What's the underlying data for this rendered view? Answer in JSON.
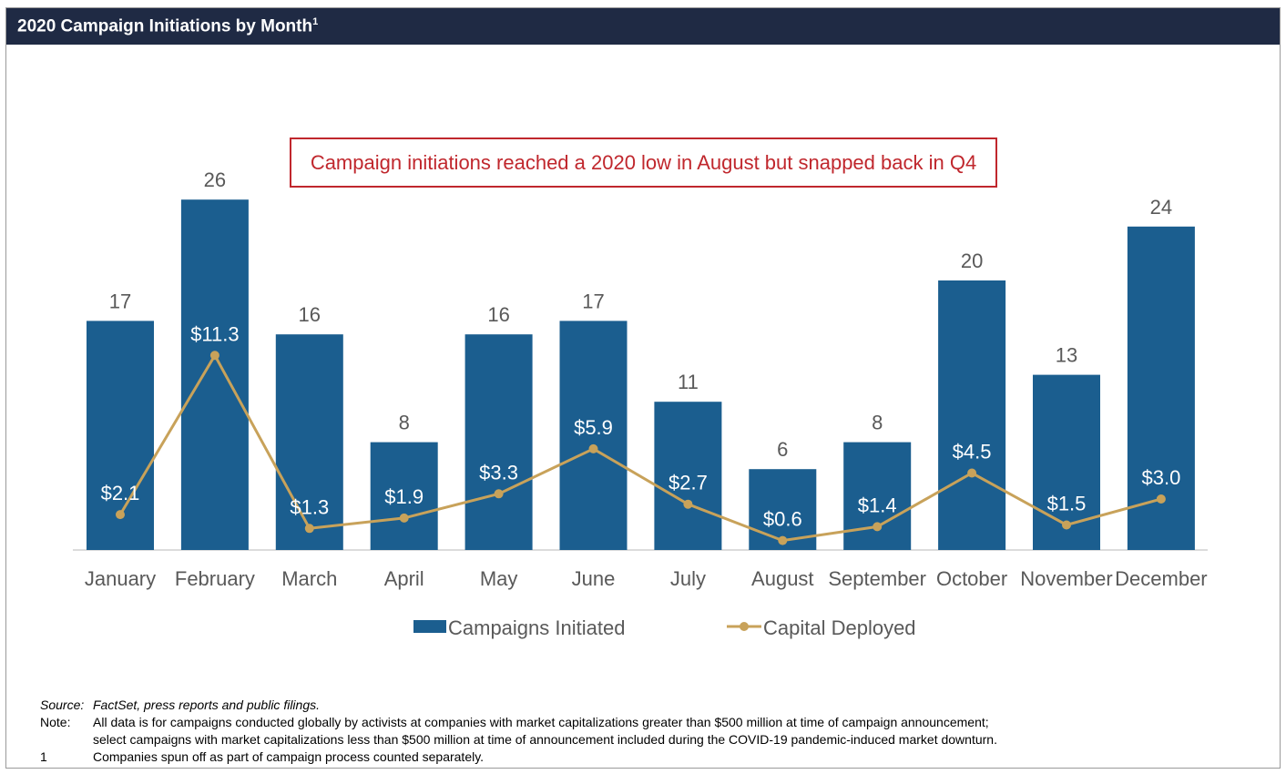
{
  "header": {
    "title": "2020 Campaign Initiations by Month",
    "sup": "1"
  },
  "callout": "Campaign initiations reached a 2020 low in August but snapped back in Q4",
  "colors": {
    "bar": "#1b5e8f",
    "line": "#c8a25a",
    "header": "#1f2a44",
    "callout": "#c0272d"
  },
  "chart_data": {
    "type": "bar",
    "title": "2020 Campaign Initiations by Month",
    "categories": [
      "January",
      "February",
      "March",
      "April",
      "May",
      "June",
      "July",
      "August",
      "September",
      "October",
      "November",
      "December"
    ],
    "series": [
      {
        "name": "Campaigns Initiated",
        "type": "bar",
        "values": [
          17,
          26,
          16,
          8,
          16,
          17,
          11,
          6,
          8,
          20,
          13,
          24
        ],
        "labels": [
          "17",
          "26",
          "16",
          "8",
          "16",
          "17",
          "11",
          "6",
          "8",
          "20",
          "13",
          "24"
        ]
      },
      {
        "name": "Capital Deployed",
        "type": "line",
        "values": [
          2.1,
          11.3,
          1.3,
          1.9,
          3.3,
          5.9,
          2.7,
          0.6,
          1.4,
          4.5,
          1.5,
          3.0
        ],
        "labels": [
          "$2.1",
          "$11.3",
          "$1.3",
          "$1.9",
          "$3.3",
          "$5.9",
          "$2.7",
          "$0.6",
          "$1.4",
          "$4.5",
          "$1.5",
          "$3.0"
        ]
      }
    ],
    "legend": [
      "Campaigns Initiated",
      "Capital Deployed"
    ],
    "legend_position": "bottom",
    "grid": false
  },
  "notes": {
    "source_label": "Source:",
    "source_text": "FactSet, press reports and public filings.",
    "note_label": "Note:",
    "note_line1": "All data is for campaigns conducted globally by activists at companies with market capitalizations greater than $500 million at time of campaign announcement;",
    "note_line2": "select campaigns with market capitalizations less than $500 million at time of announcement included during the COVID-19 pandemic-induced market downturn.",
    "fn_label": "1",
    "fn_text": "Companies spun off as part of campaign process counted separately."
  }
}
